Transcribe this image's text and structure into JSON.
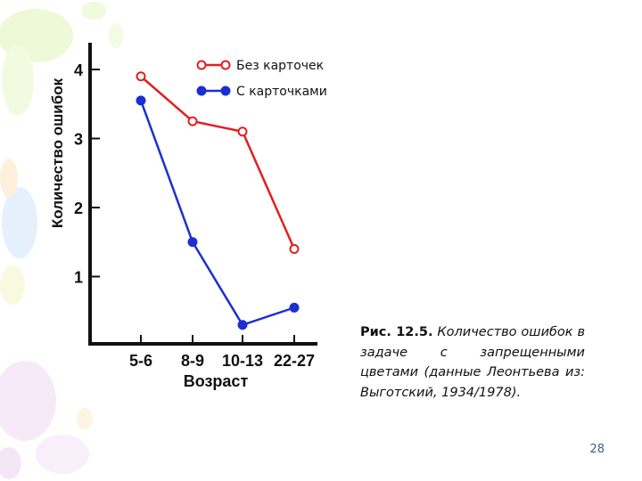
{
  "chart_data": {
    "type": "line",
    "ylabel": "Количество ошибок",
    "xlabel": "Возраст",
    "categories": [
      "5-6",
      "8-9",
      "10-13",
      "22-27"
    ],
    "yticks": [
      1,
      2,
      3,
      4
    ],
    "ylim": [
      0,
      4.4
    ],
    "grid": false,
    "legend_position": "top-right",
    "series": [
      {
        "name": "Без карточек",
        "color": "#e02020",
        "marker": "open-circle",
        "values": [
          3.9,
          3.25,
          3.1,
          1.4
        ]
      },
      {
        "name": "С карточками",
        "color": "#1c2fd0",
        "marker": "filled-circle",
        "values": [
          3.55,
          1.5,
          0.3,
          0.55
        ]
      }
    ]
  },
  "caption": {
    "label": "Рис. 12.5.",
    "text": "Количество ошибок в задаче с запрещенными цветами (данные Леонтьева из: Выготский, 1934/1978)."
  },
  "page_number": "28",
  "colors": {
    "accent_red": "#e02020",
    "accent_blue": "#1c2fd0",
    "page_number": "#3d5d8f"
  }
}
